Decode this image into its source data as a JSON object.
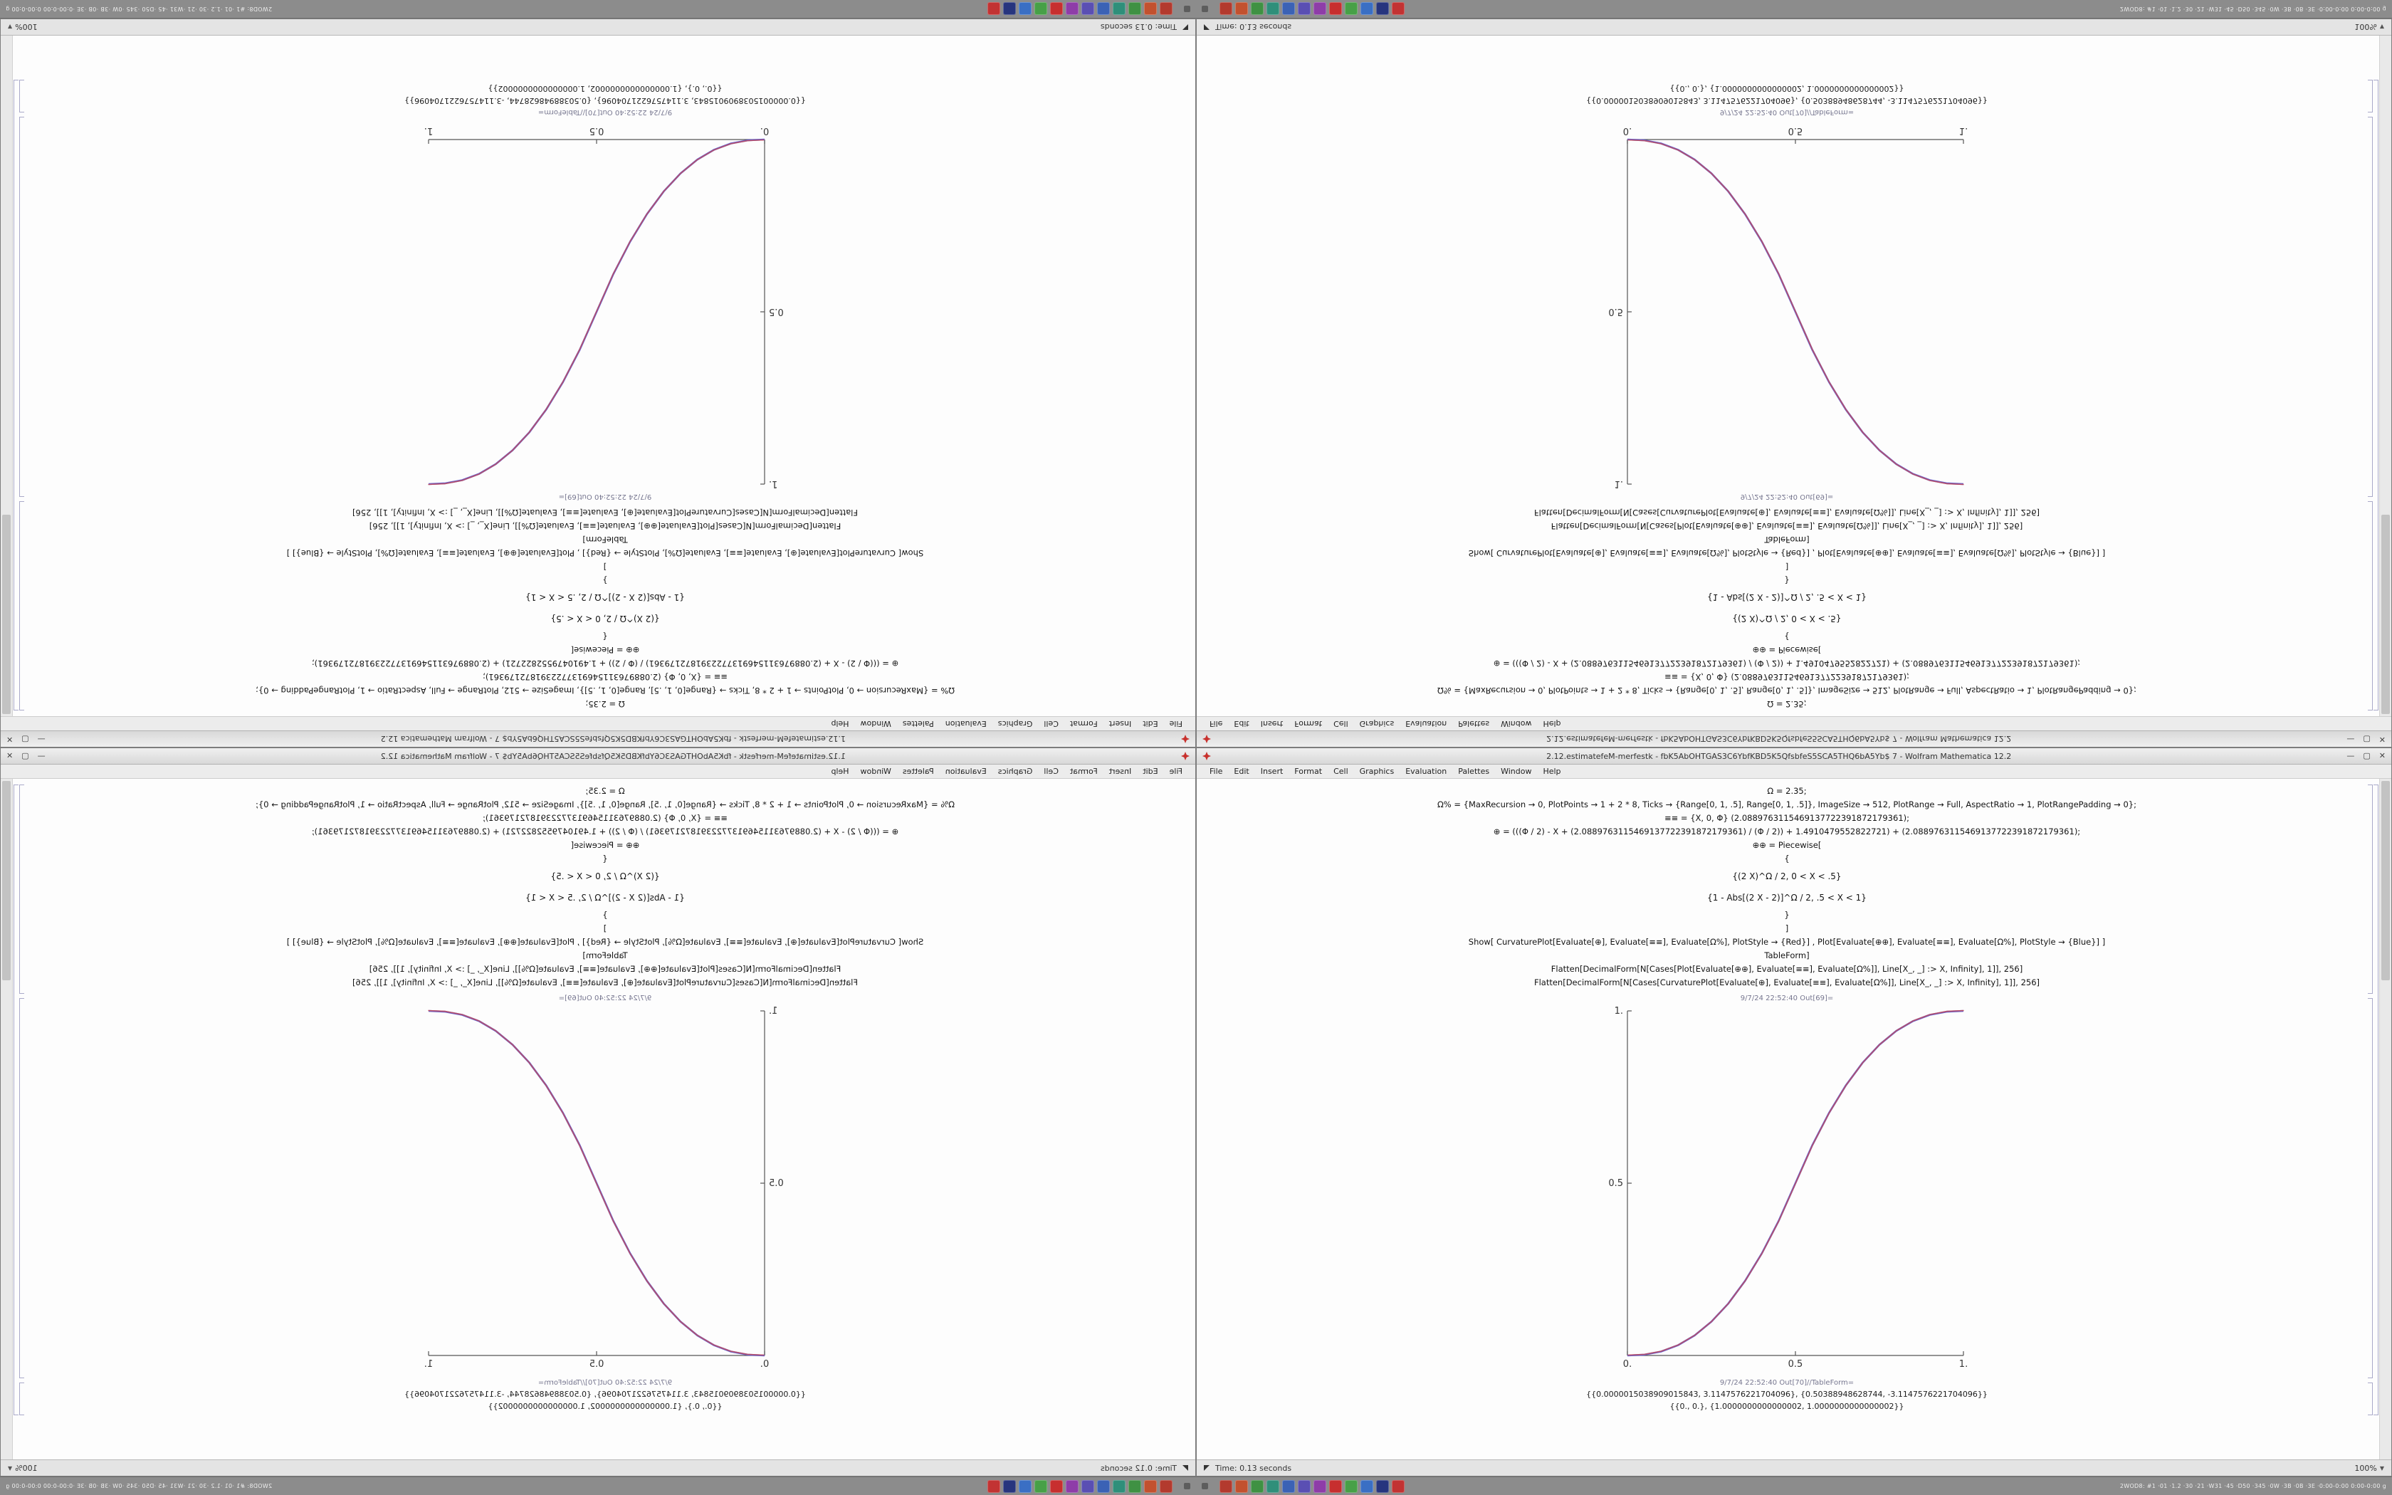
{
  "quadrants": [
    {
      "id": "top-left",
      "orientation": "rotate-180",
      "window_title": "1.12.estimatefeM-merfestk - fbK5AbOHTGAS3C6YbfKBD5K5QfsbfeS5SCA5THQ6bA5Yb$ 7 - Wolfram Mathematica 12.2",
      "status_time": "Time: 0.13 seconds"
    },
    {
      "id": "top-right",
      "orientation": "flip-vertical",
      "window_title": "2.12.estimatefeM-merfestk - fbK5AbOHTGAS3C6YbfKBD5K5QfsbfeS5SCA5THQ6bA5Yb$ 7 - Wolfram Mathematica 12.2",
      "status_time": "Time: 0.13 seconds"
    },
    {
      "id": "bottom-left",
      "orientation": "flip-horizontal",
      "window_title": "1.12.estimatefeM-merfestk - fbK5AbOHTGAS3C6YbfKBD5K5QfsbfeS5SCA5THQ6bA5Yb$ 7 - Wolfram Mathematica 12.2",
      "status_time": "Time: 0.12 seconds"
    },
    {
      "id": "bottom-right",
      "orientation": "normal",
      "window_title": "2.12.estimatefeM-merfestk - fbK5AbOHTGAS3C6YbfKBD5K5QfsbfeS5SCA5THQ6bA5Yb$ 7 - Wolfram Mathematica 12.2",
      "status_time": "Time: 0.13 seconds"
    }
  ],
  "window": {
    "menu": [
      "File",
      "Edit",
      "Insert",
      "Format",
      "Cell",
      "Graphics",
      "Evaluation",
      "Palettes",
      "Window",
      "Help"
    ],
    "controls": {
      "minimize": "—",
      "maximize": "▢",
      "close": "✕"
    }
  },
  "notebook": {
    "input_lines": [
      "Ω = 2.35;",
      "Ω% = {MaxRecursion → 0, PlotPoints → 1 + 2 * 8, Ticks → {Range[0, 1, .5], Range[0, 1, .5]}, ImageSize → 512, PlotRange → Full, AspectRatio → 1, PlotRangePadding → 0};",
      "≡≡ = {X, 0, Φ} (2.0889763115469137722391872179361);",
      "⊕ = (((Φ / 2) - X + (2.0889763115469137722391872179361) / (Φ / 2)) + 1.4910479552822721) + (2.0889763115469137722391872179361);",
      "⊕⊕ = Piecewise[",
      "{",
      "{(2 X)^Ω / 2,  0 < X < .5}",
      "{1 - Abs[(2 X - 2)]^Ω / 2,  .5 < X < 1}",
      "}",
      "]",
      "Show[  CurvaturePlot[Evaluate[⊕], Evaluate[≡≡], Evaluate[Ω%], PlotStyle → {Red}] ,  Plot[Evaluate[⊕⊕], Evaluate[≡≡], Evaluate[Ω%], PlotStyle → {Blue}] ]",
      "TableForm]",
      "Flatten[DecimalForm[N[Cases[Plot[Evaluate[⊕⊕], Evaluate[≡≡], Evaluate[Ω%]], Line[X_, _] :> X, Infinity], 1]], 256]",
      "Flatten[DecimalForm[N[Cases[CurvaturePlot[Evaluate[⊕], Evaluate[≡≡], Evaluate[Ω%]], Line[X_, _] :> X, Infinity], 1]], 256]"
    ],
    "out_plot_label": "9/7/24 22:52:40 Out[69]=",
    "out_table_label": "9/7/24 22:52:40 Out[70]//TableForm=",
    "table_rows": [
      "{{0.0000015038909015843, 3.1147576221704096}, {0.50388948628744, -3.1147576221704096}}",
      "{{0., 0.}, {1.0000000000000002, 1.0000000000000002}}"
    ],
    "magnification": "100%"
  },
  "chart_data": {
    "type": "line",
    "title": "",
    "xlabel": "",
    "ylabel": "",
    "xlim": [
      0,
      1
    ],
    "ylim": [
      0,
      1
    ],
    "grid": false,
    "legend": "none",
    "x_tick_values": [
      0,
      0.5,
      1
    ],
    "x_tick_labels": [
      "0.",
      "0.5",
      "1."
    ],
    "y_tick_values": [
      0.5,
      1
    ],
    "y_tick_labels": [
      "0.5",
      "1."
    ],
    "x": [
      0,
      0.05,
      0.1,
      0.15,
      0.2,
      0.25,
      0.3,
      0.35,
      0.4,
      0.45,
      0.5,
      0.55,
      0.6,
      0.65,
      0.7,
      0.75,
      0.8,
      0.85,
      0.9,
      0.95,
      1
    ],
    "y": [
      0,
      0.0022,
      0.0114,
      0.0295,
      0.058,
      0.0981,
      0.1505,
      0.2163,
      0.296,
      0.3903,
      0.5,
      0.6097,
      0.704,
      0.7837,
      0.8495,
      0.9019,
      0.942,
      0.9705,
      0.9886,
      0.9978,
      1
    ],
    "series": [
      {
        "name": "CurvaturePlot[⊕] (Red)",
        "color": "#c94a52"
      },
      {
        "name": "Plot[⊕⊕] (Blue)",
        "color": "#6a5fc6"
      }
    ],
    "axis_color": "#555555"
  },
  "taskbar": {
    "icons": [
      {
        "name": "taskbar-app-icon-terminal",
        "color": "#b33a2e"
      },
      {
        "name": "taskbar-app-icon-files",
        "color": "#c2512f"
      },
      {
        "name": "taskbar-app-icon-editor",
        "color": "#3f9143"
      },
      {
        "name": "taskbar-app-icon-system",
        "color": "#2f8f7a"
      },
      {
        "name": "taskbar-app-icon-browser",
        "color": "#3b62b5"
      },
      {
        "name": "taskbar-app-icon-settings",
        "color": "#5a4fb3"
      },
      {
        "name": "taskbar-app-icon-media",
        "color": "#8e3da8"
      },
      {
        "name": "taskbar-app-icon-mathematica",
        "color": "#c72f2f"
      },
      {
        "name": "taskbar-app-icon-green",
        "color": "#47a047"
      },
      {
        "name": "taskbar-app-icon-blue",
        "color": "#3a6fc4"
      },
      {
        "name": "taskbar-app-icon-navy",
        "color": "#27357e"
      },
      {
        "name": "taskbar-app-icon-red",
        "color": "#c23333"
      }
    ],
    "right_text": "2WOD8: #1 ·01 ·1.2 ·30 ·21 ·W31 ·45 ·D50 ·345 ·0W ·3B ·0B ·3E ·0:00-0:00 0:00-0:00 g"
  }
}
